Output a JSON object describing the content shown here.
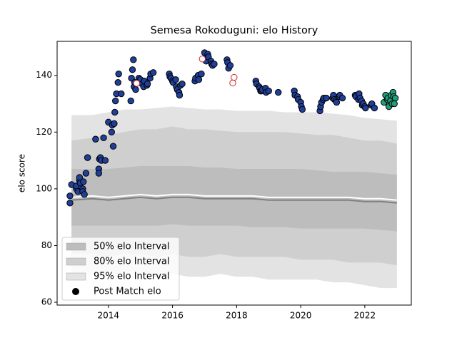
{
  "chart_data": {
    "type": "scatter",
    "title": "Semesa Rokoduguni: elo History",
    "ylabel": "elo score",
    "xlim": [
      2012.4,
      2023.45
    ],
    "ylim": [
      59,
      152
    ],
    "xticks": [
      2014,
      2016,
      2018,
      2020,
      2022
    ],
    "yticks": [
      60,
      80,
      100,
      120,
      140
    ],
    "grid": false,
    "legend": "lower left",
    "legend_marker_color": "#000000",
    "band_x": [
      2012.85,
      2013.5,
      2014,
      2014.5,
      2015,
      2015.5,
      2016,
      2016.5,
      2017,
      2017.5,
      2018,
      2018.5,
      2019,
      2019.5,
      2020,
      2020.5,
      2021,
      2021.5,
      2022,
      2022.5,
      2023.0
    ],
    "bands": [
      {
        "name": "95% elo Interval",
        "color": "#e3e3e3",
        "upper": [
          126,
          126,
          127,
          128,
          128,
          128.5,
          129,
          128.5,
          128,
          128,
          127.5,
          127.5,
          127.5,
          127,
          127,
          127,
          126.5,
          126,
          125,
          124.5,
          124
        ],
        "lower": [
          70,
          70,
          69,
          70,
          70,
          69,
          70,
          69,
          69,
          70,
          69,
          69,
          68,
          68,
          68,
          68,
          67,
          67,
          66,
          65,
          65
        ]
      },
      {
        "name": "80% elo Interval",
        "color": "#cfcfcf",
        "upper": [
          117,
          118,
          119,
          120,
          121,
          121,
          122,
          121,
          121,
          120.5,
          120,
          120,
          120,
          120,
          119.5,
          119,
          119,
          118,
          117,
          117,
          116
        ],
        "lower": [
          77,
          77,
          76,
          77,
          77,
          76,
          77,
          76,
          76,
          77,
          76,
          76,
          76,
          76,
          75,
          75,
          75,
          74,
          74,
          74,
          73
        ]
      },
      {
        "name": "50% elo Interval",
        "color": "#bdbdbd",
        "upper": [
          107,
          107,
          107,
          107.5,
          108,
          108,
          108,
          108,
          107.5,
          107.5,
          107,
          107,
          107,
          107,
          107,
          106.5,
          106,
          106,
          106,
          105.5,
          105
        ],
        "lower": [
          87,
          87,
          87,
          87,
          87,
          87,
          87.5,
          87,
          87,
          87,
          87,
          86.5,
          86.5,
          86.5,
          86,
          86,
          86,
          86,
          86,
          85.5,
          85
        ]
      }
    ],
    "lines": [
      {
        "color": "#ffffff",
        "values": [
          97,
          97.5,
          97,
          97.5,
          98,
          97.5,
          98,
          98,
          97.5,
          97.5,
          97.5,
          97.5,
          97,
          97,
          97,
          97,
          97,
          97,
          96.5,
          96.5,
          96
        ]
      },
      {
        "color": "#808080",
        "values": [
          96,
          96.5,
          96,
          96.5,
          97,
          96.5,
          97,
          97,
          96.5,
          96.5,
          96.5,
          96.5,
          96,
          96,
          96,
          96,
          96,
          96,
          95.5,
          95.5,
          95
        ]
      }
    ],
    "series": [
      {
        "name": "Post Match elo",
        "color": "#1f3f99",
        "edgecolor": "#000000",
        "x": [
          2012.8,
          2012.8,
          2012.85,
          2013.0,
          2013.0,
          2013.05,
          2013.1,
          2013.1,
          2013.12,
          2013.2,
          2013.2,
          2013.25,
          2013.22,
          2013.3,
          2013.35,
          2013.6,
          2013.7,
          2013.7,
          2013.72,
          2013.75,
          2013.78,
          2013.85,
          2013.9,
          2014.0,
          2014.1,
          2014.12,
          2014.15,
          2014.18,
          2014.2,
          2014.22,
          2014.25,
          2014.3,
          2014.32,
          2014.4,
          2014.7,
          2014.72,
          2014.75,
          2014.78,
          2014.8,
          2014.85,
          2014.82,
          2014.95,
          2015.0,
          2015.05,
          2015.1,
          2015.12,
          2015.2,
          2015.22,
          2015.3,
          2015.32,
          2015.4,
          2015.9,
          2015.92,
          2015.95,
          2016.0,
          2016.02,
          2016.1,
          2016.12,
          2016.15,
          2016.2,
          2016.22,
          2016.25,
          2016.3,
          2016.7,
          2016.72,
          2016.8,
          2016.82,
          2016.9,
          2017.0,
          2017.02,
          2017.05,
          2017.1,
          2017.12,
          2017.2,
          2017.22,
          2017.25,
          2017.3,
          2017.7,
          2017.72,
          2017.75,
          2017.8,
          2018.6,
          2018.62,
          2018.7,
          2018.72,
          2018.75,
          2018.78,
          2018.8,
          2018.9,
          2018.92,
          2019.0,
          2019.3,
          2019.8,
          2019.82,
          2019.9,
          2019.92,
          2020.0,
          2020.02,
          2020.05,
          2020.6,
          2020.62,
          2020.65,
          2020.7,
          2020.72,
          2020.8,
          2021.0,
          2021.02,
          2021.05,
          2021.1,
          2021.12,
          2021.2,
          2021.22,
          2021.3,
          2021.7,
          2021.72,
          2021.8,
          2021.82,
          2021.85,
          2021.9,
          2021.92,
          2021.95,
          2022.0,
          2022.02,
          2022.2,
          2022.22,
          2022.3
        ],
        "values": [
          97.5,
          95,
          101.5,
          100,
          101,
          99,
          103,
          104,
          102,
          100,
          99,
          98,
          102.5,
          105.5,
          111,
          117.5,
          107,
          105.5,
          110.5,
          111,
          110,
          118,
          110,
          123.5,
          120,
          122.5,
          115,
          123,
          127,
          131,
          133.5,
          137.5,
          140.5,
          133.5,
          131,
          139,
          142,
          145.5,
          136,
          135,
          137.5,
          139,
          138.5,
          137,
          136,
          138,
          136.5,
          137,
          139,
          140.5,
          141,
          140.5,
          139.5,
          139,
          138,
          137.5,
          138.5,
          136,
          135,
          134,
          133,
          136.5,
          137,
          138,
          139,
          140,
          138.5,
          140.5,
          148,
          146,
          145,
          147.5,
          146.5,
          145,
          144,
          143.5,
          144,
          145.5,
          144.5,
          142.5,
          143.5,
          138,
          137,
          136,
          135.5,
          134.5,
          134.5,
          135,
          135.5,
          134,
          134.5,
          134,
          134.5,
          133,
          132.5,
          131.5,
          130.5,
          129,
          128,
          127.5,
          129,
          130.5,
          131.5,
          132,
          132,
          132,
          133,
          131.5,
          131,
          130.5,
          132.5,
          133,
          132,
          133,
          132.5,
          131.5,
          133.5,
          132,
          131,
          129.5,
          130,
          129,
          128.5,
          129.5,
          130,
          128.5
        ]
      },
      {
        "color": "#ffffff",
        "edgecolor": "#d62728",
        "x": [
          2014.88,
          2016.93,
          2017.88,
          2017.92
        ],
        "values": [
          137.2,
          145.8,
          137.3,
          139.3
        ]
      },
      {
        "color": "#1f9e7a",
        "edgecolor": "#000000",
        "x": [
          2022.6,
          2022.65,
          2022.7,
          2022.72,
          2022.75,
          2022.8,
          2022.82,
          2022.85,
          2022.88,
          2022.9,
          2022.95,
          2022.92
        ],
        "values": [
          130.5,
          133,
          131.5,
          132,
          129,
          131,
          133,
          130,
          134,
          132.5,
          132,
          130
        ]
      }
    ]
  }
}
